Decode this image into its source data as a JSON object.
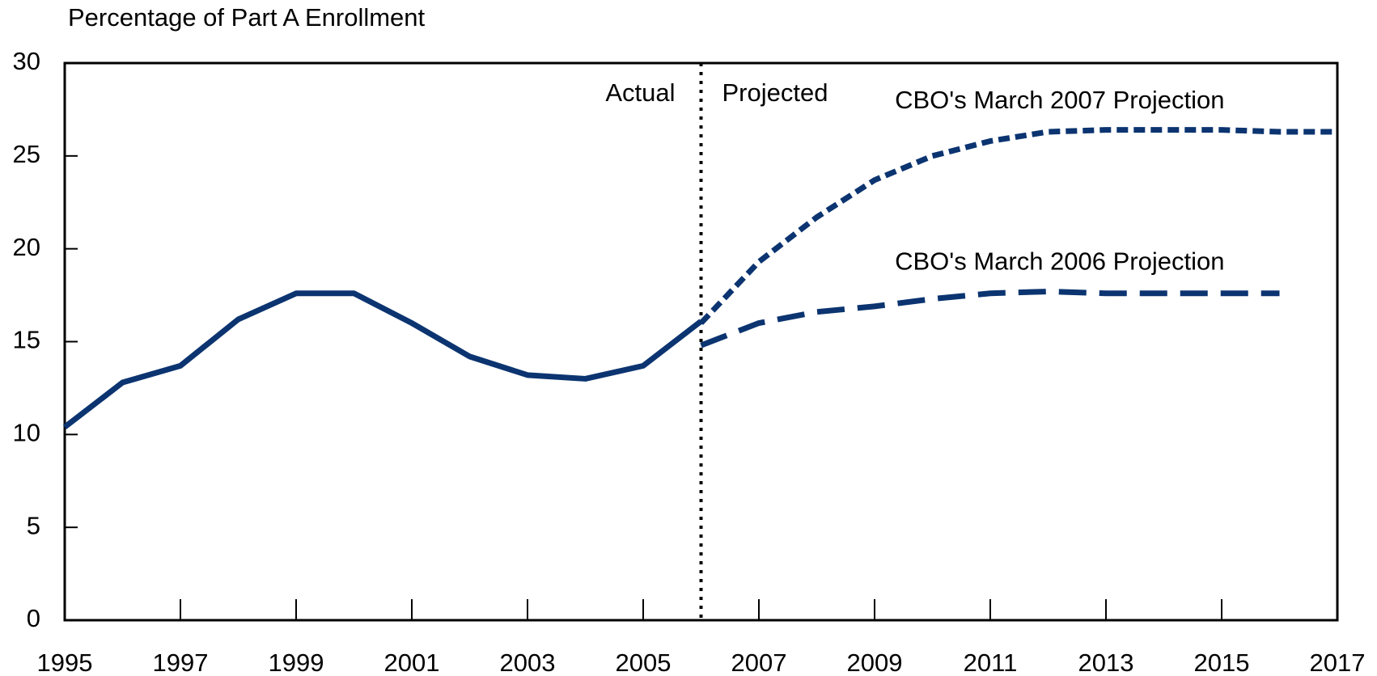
{
  "chart_data": {
    "type": "line",
    "ylabel": "Percentage of Part A Enrollment",
    "x": [
      1995,
      1996,
      1997,
      1998,
      1999,
      2000,
      2001,
      2002,
      2003,
      2004,
      2005,
      2006,
      2007,
      2008,
      2009,
      2010,
      2011,
      2012,
      2013,
      2014,
      2015,
      2016,
      2017
    ],
    "series": [
      {
        "color": "#0b3470",
        "dash": "solid",
        "values": [
          10.4,
          12.8,
          13.7,
          16.2,
          17.6,
          17.6,
          16.0,
          14.2,
          13.2,
          13.0,
          13.7,
          16.1,
          null,
          null,
          null,
          null,
          null,
          null,
          null,
          null,
          null,
          null,
          null
        ]
      },
      {
        "name": "CBO's March 2007 Projection",
        "color": "#0b3470",
        "dash": "dotted",
        "values": [
          null,
          null,
          null,
          null,
          null,
          null,
          null,
          null,
          null,
          null,
          null,
          16.0,
          19.3,
          21.7,
          23.7,
          25.0,
          25.8,
          26.3,
          26.4,
          26.4,
          26.4,
          26.3,
          26.3
        ]
      },
      {
        "name": "CBO's March 2006 Projection",
        "color": "#0b3470",
        "dash": "dashed",
        "values": [
          null,
          null,
          null,
          null,
          null,
          null,
          null,
          null,
          null,
          null,
          null,
          14.8,
          16.0,
          16.6,
          16.9,
          17.3,
          17.6,
          17.7,
          17.6,
          17.6,
          17.6,
          17.6,
          null
        ]
      }
    ],
    "divider_x": 2006,
    "annotations": [
      "Actual",
      "Projected"
    ],
    "xlim": [
      1995,
      2017
    ],
    "xticks": [
      1995,
      1997,
      1999,
      2001,
      2003,
      2005,
      2007,
      2009,
      2011,
      2013,
      2015,
      2017
    ],
    "ylim": [
      0,
      30
    ],
    "yticks": [
      0,
      5,
      10,
      15,
      20,
      25,
      30
    ],
    "grid": false
  }
}
